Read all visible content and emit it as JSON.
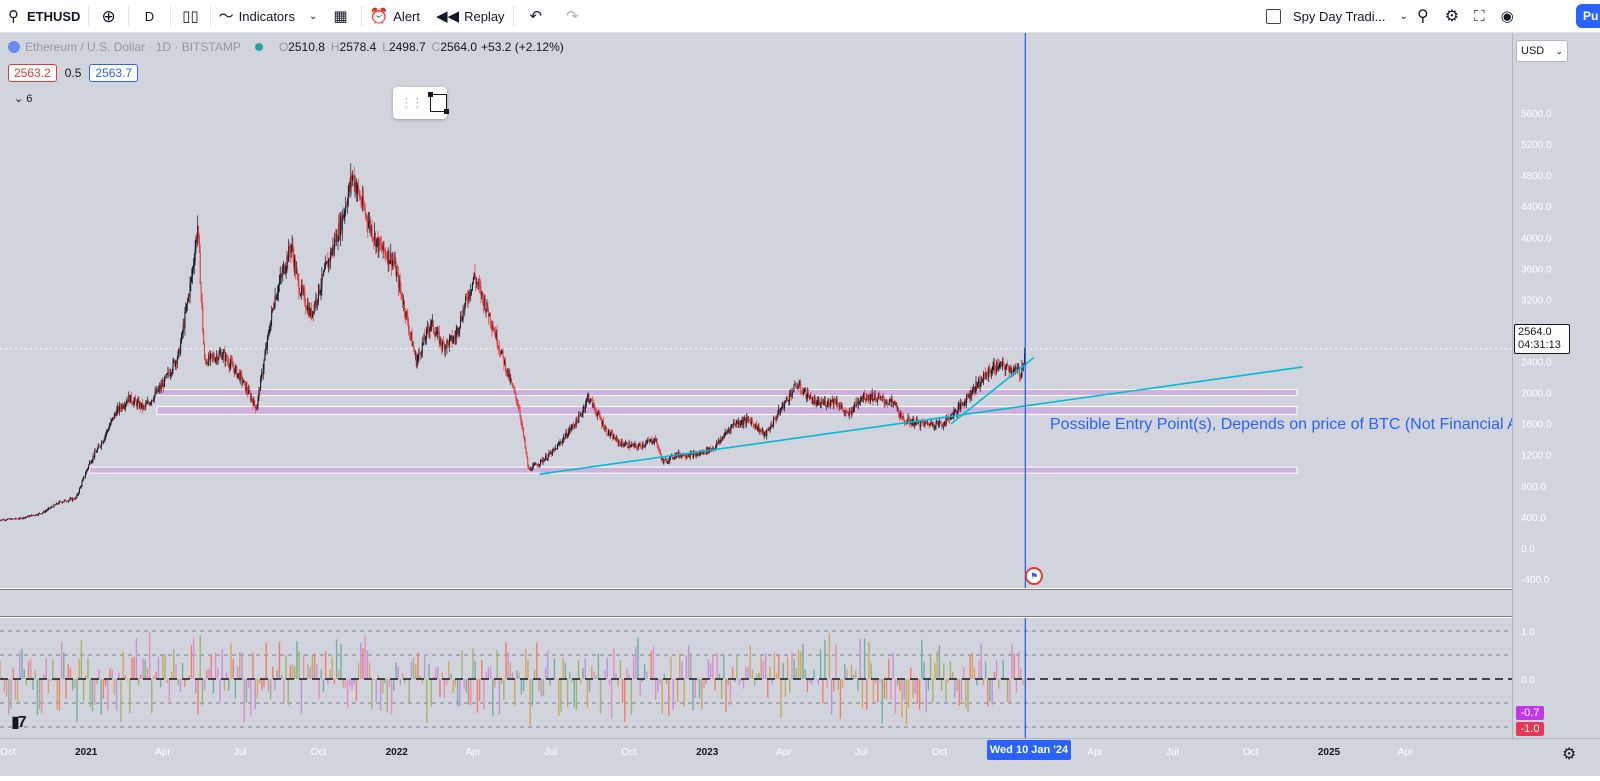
{
  "toolbar": {
    "symbol": "ETHUSD",
    "interval": "D",
    "indicators_label": "Indicators",
    "alert_label": "Alert",
    "replay_label": "Replay",
    "layout_name": "Spy Day Tradi...",
    "publish_label": "Pu"
  },
  "legend": {
    "title": "Ethereum / U.S. Dollar · 1D · BITSTAMP",
    "o_label": "O",
    "o": "2510.8",
    "h_label": "H",
    "h": "2578.4",
    "l_label": "L",
    "l": "2498.7",
    "c_label": "C",
    "c": "2564.0",
    "change": "+53.2 (+2.12%)"
  },
  "indicator": {
    "left": "2563.2",
    "mid": "0.5",
    "right": "2563.7",
    "collapsed_count": "6"
  },
  "currency": "USD",
  "last_price": "2564.0",
  "countdown": "04:31:13",
  "annotation": "Possible Entry Point(s), Depends on price of BTC (Not Financial Advice)",
  "crosshair_date": "Wed 10 Jan '24",
  "colors": {
    "background": "#d1d4dc",
    "up": "#131722",
    "down": "#e53935",
    "trendline": "#00bcd4",
    "zone": "#c9a6df",
    "crosshair": "#2962ff",
    "accent": "#2962ff"
  },
  "icons": [
    "search-icon",
    "plus-circle-icon",
    "candles-icon",
    "indicators-icon",
    "chevron-down-icon",
    "templates-icon",
    "alert-icon",
    "replay-icon",
    "undo-icon",
    "redo-icon",
    "quick-search-icon",
    "settings-icon",
    "fullscreen-icon",
    "camera-icon"
  ],
  "chart_data": [
    {
      "type": "line",
      "series": [
        {
          "name": "ETHUSD",
          "x": [
            "2020-09-20",
            "2020-10-15",
            "2020-11-10",
            "2020-12-01",
            "2020-12-20",
            "2021-01-05",
            "2021-01-20",
            "2021-02-05",
            "2021-02-20",
            "2021-03-10",
            "2021-04-01",
            "2021-04-20",
            "2021-05-05",
            "2021-05-12",
            "2021-05-20",
            "2021-06-10",
            "2021-07-01",
            "2021-07-20",
            "2021-08-10",
            "2021-08-30",
            "2021-09-07",
            "2021-09-22",
            "2021-10-10",
            "2021-10-28",
            "2021-11-10",
            "2021-11-25",
            "2021-12-10",
            "2021-12-28",
            "2022-01-10",
            "2022-01-24",
            "2022-02-10",
            "2022-02-24",
            "2022-03-10",
            "2022-04-02",
            "2022-04-20",
            "2022-05-10",
            "2022-05-25",
            "2022-06-05",
            "2022-06-18",
            "2022-07-05",
            "2022-08-05",
            "2022-08-14",
            "2022-09-05",
            "2022-09-20",
            "2022-10-10",
            "2022-11-01",
            "2022-11-10",
            "2022-11-25",
            "2022-12-20",
            "2023-01-10",
            "2023-02-01",
            "2023-02-20",
            "2023-03-10",
            "2023-04-01",
            "2023-04-16",
            "2023-05-10",
            "2023-06-01",
            "2023-06-15",
            "2023-07-01",
            "2023-07-14",
            "2023-08-10",
            "2023-08-18",
            "2023-09-10",
            "2023-10-05",
            "2023-10-24",
            "2023-11-10",
            "2023-12-01",
            "2023-12-10",
            "2023-12-25",
            "2024-01-05",
            "2024-01-10"
          ],
          "y": [
            360,
            380,
            450,
            590,
            640,
            1100,
            1380,
            1750,
            1930,
            1800,
            2100,
            2500,
            3500,
            4150,
            2400,
            2500,
            2200,
            1800,
            3200,
            3900,
            3400,
            3000,
            3600,
            4200,
            4800,
            4300,
            3900,
            3700,
            3100,
            2400,
            2900,
            2600,
            2700,
            3500,
            3000,
            2300,
            1800,
            1000,
            1100,
            1250,
            1700,
            1950,
            1500,
            1350,
            1300,
            1400,
            1100,
            1200,
            1200,
            1300,
            1600,
            1650,
            1450,
            1850,
            2100,
            1850,
            1900,
            1700,
            1950,
            1950,
            1850,
            1650,
            1600,
            1600,
            1800,
            2050,
            2300,
            2350,
            2300,
            2250,
            2564
          ]
        }
      ],
      "yticks": [
        -400.0,
        0.0,
        400.0,
        800.0,
        1200.0,
        1600.0,
        2000.0,
        2400.0,
        2800.0,
        3200.0,
        3600.0,
        4000.0,
        4400.0,
        4800.0,
        5200.0,
        5600.0
      ],
      "ylim": [
        -500,
        6000
      ],
      "xticks": [
        "Oct",
        "2021",
        "Apr",
        "Jul",
        "Oct",
        "2022",
        "Apr",
        "Jul",
        "Oct",
        "2023",
        "Apr",
        "Jul",
        "Oct",
        "Wed 10 Jan '24",
        "Apr",
        "Jul",
        "Oct",
        "2025",
        "Apr"
      ],
      "zones": [
        [
          1000,
          1040
        ],
        [
          1720,
          1820
        ],
        [
          2010,
          2040
        ]
      ],
      "trendlines": [
        {
          "from": [
            "2022-06-18",
            950
          ],
          "to": [
            "2024-12-01",
            2330
          ]
        },
        {
          "from": [
            "2023-10-15",
            1600
          ],
          "to": [
            "2024-01-20",
            2450
          ]
        }
      ]
    },
    {
      "type": "bar",
      "yticks": [
        1.0,
        0.0
      ],
      "ylim": [
        -1.05,
        1.05
      ],
      "last_values": [
        "-0.7",
        "-1.0"
      ]
    }
  ]
}
